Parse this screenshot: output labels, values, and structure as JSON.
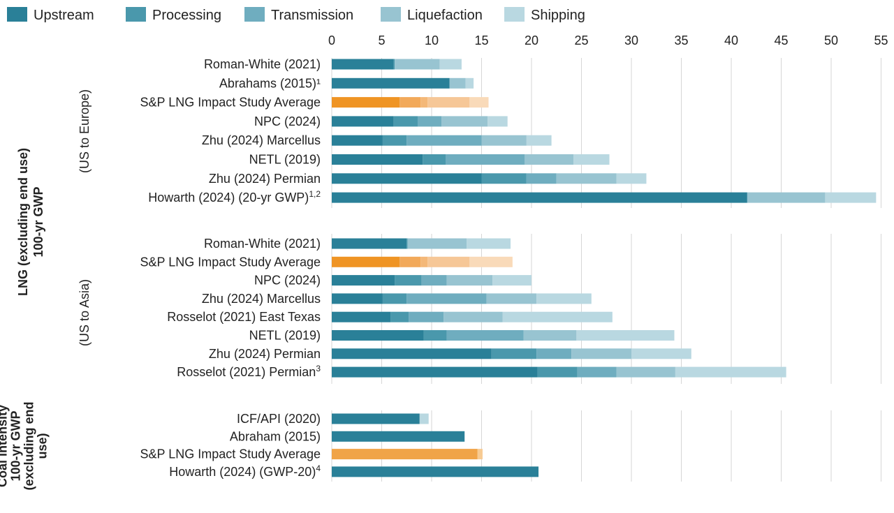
{
  "chart_data": {
    "type": "bar",
    "orientation": "horizontal",
    "stacked": true,
    "legend": {
      "placement": "top-left",
      "entries": [
        {
          "name": "Upstream",
          "color": "#2a8098"
        },
        {
          "name": "Processing",
          "color": "#4a98ac"
        },
        {
          "name": "Transmission",
          "color": "#6fadbf"
        },
        {
          "name": "Liquefaction",
          "color": "#98c4d1"
        },
        {
          "name": "Shipping",
          "color": "#b9d8e1"
        }
      ]
    },
    "x_axis": {
      "position": "top",
      "range": [
        0,
        55
      ],
      "ticks": [
        0,
        5,
        10,
        15,
        20,
        25,
        30,
        35,
        40,
        45,
        50,
        55
      ]
    },
    "grid": "vertical",
    "highlight_colors": [
      "#ef9424",
      "#f2a95a",
      "#f4b878",
      "#f6c797",
      "#f9dab9"
    ],
    "coal_highlight_colors": [
      "#f0a448",
      "#f7cb93"
    ],
    "section_labels": [
      {
        "lines": [
          "LNG (excluding end use)",
          "100-yr GWP"
        ]
      },
      {
        "lines": [
          "Coal intensity",
          "100-yr GWP",
          "(excluding end",
          "use)"
        ]
      }
    ],
    "groups": [
      {
        "label": "(US to Europe)",
        "rows": [
          {
            "label": "Roman-White (2021)",
            "values": [
              6.2,
              0.1,
              0,
              4.5,
              2.2
            ]
          },
          {
            "label": "Abrahams (2015)¹",
            "values": [
              11.8,
              0,
              0,
              1.6,
              0.8
            ]
          },
          {
            "label": "S&P LNG Impact Study Average",
            "highlight": true,
            "values": [
              6.8,
              2.1,
              0.7,
              4.2,
              1.9
            ]
          },
          {
            "label": "NPC (2024)",
            "values": [
              6.2,
              2.4,
              2.4,
              4.6,
              2.0
            ]
          },
          {
            "label": "Zhu (2024)  Marcellus",
            "values": [
              5.1,
              2.4,
              7.5,
              4.5,
              2.5
            ]
          },
          {
            "label": "NETL (2019)",
            "values": [
              9.1,
              2.3,
              7.9,
              4.9,
              3.6
            ]
          },
          {
            "label": "Zhu (2024) Permian",
            "values": [
              15.0,
              4.5,
              3.0,
              6.0,
              3.0
            ]
          },
          {
            "label": "Howarth (2024) (20-yr GWP)",
            "sup": "1,2",
            "values": [
              41.6,
              0,
              0,
              7.8,
              5.1
            ]
          }
        ]
      },
      {
        "label": "(US to Asia)",
        "rows": [
          {
            "label": "Roman-White (2021)",
            "values": [
              7.5,
              0.1,
              0,
              5.9,
              4.4
            ]
          },
          {
            "label": "S&P LNG Impact Study Average",
            "highlight": true,
            "values": [
              6.8,
              2.1,
              0.7,
              4.2,
              4.3
            ]
          },
          {
            "label": "NPC (2024)",
            "values": [
              6.3,
              2.7,
              2.5,
              4.6,
              3.9
            ]
          },
          {
            "label": "Zhu (2024) Marcellus",
            "values": [
              5.1,
              2.4,
              8.0,
              5.0,
              5.5
            ]
          },
          {
            "label": "Rosselot (2021) East Texas",
            "values": [
              5.9,
              1.8,
              3.5,
              5.9,
              11.0
            ]
          },
          {
            "label": "NETL (2019)",
            "values": [
              9.2,
              2.3,
              7.7,
              5.3,
              9.8
            ]
          },
          {
            "label": "Zhu (2024) Permian",
            "values": [
              16.0,
              4.5,
              3.5,
              6.0,
              6.0
            ]
          },
          {
            "label": "Rosselot (2021) Permian",
            "sup": "3",
            "values": [
              20.6,
              4.0,
              3.9,
              5.9,
              11.1
            ]
          }
        ]
      },
      {
        "label": "",
        "section": "coal",
        "rows": [
          {
            "label": "ICF/API (2020)",
            "values": [
              8.8,
              0,
              0,
              0,
              0.9
            ]
          },
          {
            "label": "Abraham (2015)",
            "values": [
              13.3,
              0,
              0,
              0,
              0
            ]
          },
          {
            "label": "S&P LNG Impact Study Average",
            "highlight": true,
            "values": [
              14.6,
              0,
              0,
              0,
              0.5
            ]
          },
          {
            "label": "Howarth (2024) (GWP-20)",
            "sup": "4",
            "values": [
              20.7,
              0,
              0,
              0,
              0
            ]
          }
        ]
      }
    ]
  }
}
